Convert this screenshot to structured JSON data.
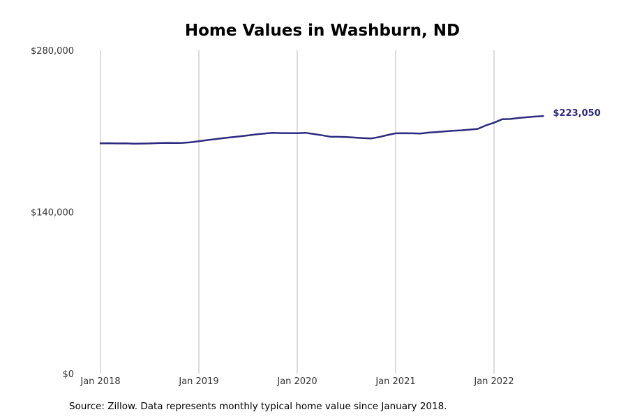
{
  "title": "Home Values in Washburn, ND",
  "source_note": "Source: Zillow. Data represents monthly typical home value since January 2018.",
  "colors": {
    "line": "#2e2a80",
    "grid": "#b8b8b8"
  },
  "chart_data": {
    "type": "line",
    "title": "Home Values in Washburn, ND",
    "xlabel": "",
    "ylabel": "",
    "ylim": [
      0,
      280000
    ],
    "yticks": [
      0,
      140000,
      280000
    ],
    "ytick_labels": [
      "$0",
      "$140,000",
      "$280,000"
    ],
    "xticks": [
      "2018-01",
      "2019-01",
      "2020-01",
      "2021-01",
      "2022-01"
    ],
    "xtick_labels": [
      "Jan 2018",
      "Jan 2019",
      "Jan 2020",
      "Jan 2021",
      "Jan 2022"
    ],
    "grid": "vertical",
    "end_label": "$223,050",
    "series": [
      {
        "values": [
          [
            "2018-01",
            199400
          ],
          [
            "2018-02",
            199500
          ],
          [
            "2018-03",
            199300
          ],
          [
            "2018-04",
            199400
          ],
          [
            "2018-05",
            199100
          ],
          [
            "2018-06",
            199200
          ],
          [
            "2018-07",
            199300
          ],
          [
            "2018-08",
            199600
          ],
          [
            "2018-09",
            199800
          ],
          [
            "2018-10",
            199700
          ],
          [
            "2018-11",
            199800
          ],
          [
            "2018-12",
            200300
          ],
          [
            "2019-01",
            201200
          ],
          [
            "2019-02",
            202200
          ],
          [
            "2019-03",
            203000
          ],
          [
            "2019-04",
            203900
          ],
          [
            "2019-05",
            204700
          ],
          [
            "2019-06",
            205500
          ],
          [
            "2019-07",
            206300
          ],
          [
            "2019-08",
            207200
          ],
          [
            "2019-09",
            207900
          ],
          [
            "2019-10",
            208500
          ],
          [
            "2019-11",
            208300
          ],
          [
            "2019-12",
            208300
          ],
          [
            "2020-01",
            208200
          ],
          [
            "2020-02",
            208500
          ],
          [
            "2020-03",
            207500
          ],
          [
            "2020-04",
            206400
          ],
          [
            "2020-05",
            205200
          ],
          [
            "2020-06",
            205100
          ],
          [
            "2020-07",
            204900
          ],
          [
            "2020-08",
            204400
          ],
          [
            "2020-09",
            203900
          ],
          [
            "2020-10",
            203600
          ],
          [
            "2020-11",
            204900
          ],
          [
            "2020-12",
            206600
          ],
          [
            "2021-01",
            208100
          ],
          [
            "2021-02",
            208200
          ],
          [
            "2021-03",
            208100
          ],
          [
            "2021-04",
            207900
          ],
          [
            "2021-05",
            208700
          ],
          [
            "2021-06",
            209200
          ],
          [
            "2021-07",
            209800
          ],
          [
            "2021-08",
            210300
          ],
          [
            "2021-09",
            210700
          ],
          [
            "2021-10",
            211300
          ],
          [
            "2021-11",
            211900
          ],
          [
            "2021-12",
            214900
          ],
          [
            "2022-01",
            217300
          ],
          [
            "2022-02",
            220300
          ],
          [
            "2022-03",
            220500
          ],
          [
            "2022-04",
            221400
          ],
          [
            "2022-05",
            222000
          ],
          [
            "2022-06",
            222600
          ],
          [
            "2022-07",
            223050
          ]
        ]
      }
    ]
  }
}
